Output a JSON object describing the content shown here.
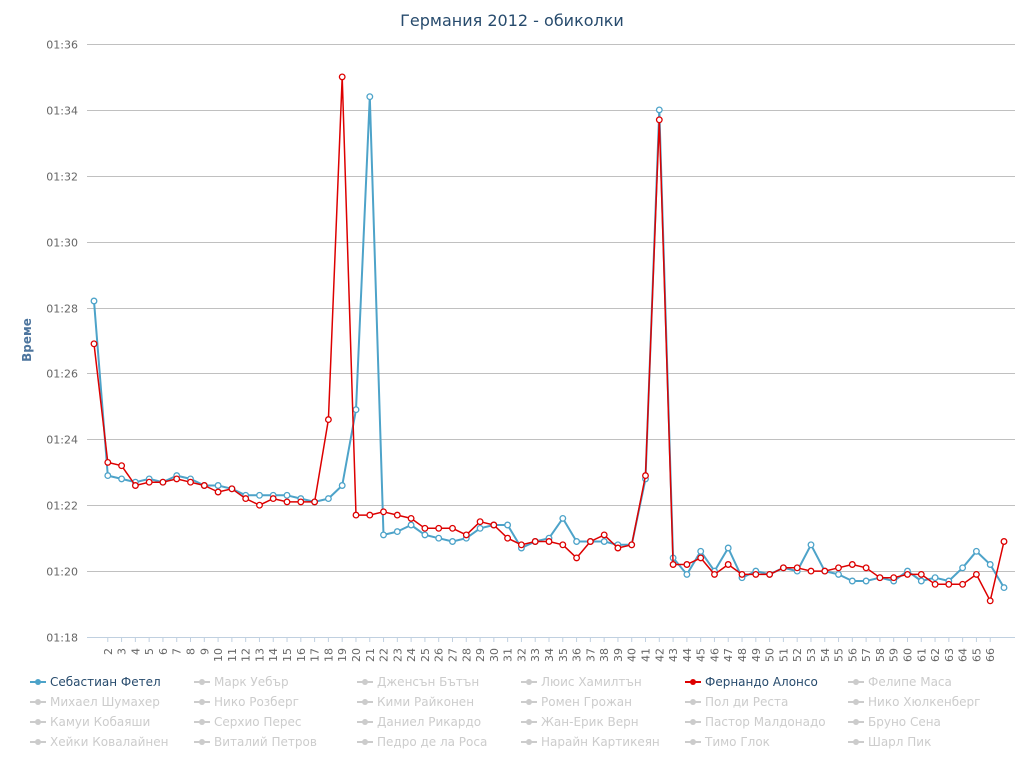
{
  "chart_data": {
    "type": "line",
    "title": "Германия 2012 - обиколки",
    "ylabel": "Време",
    "xlabel": "",
    "ylim": [
      78,
      96
    ],
    "ytick_values": [
      78,
      80,
      82,
      84,
      86,
      88,
      90,
      92,
      94,
      96
    ],
    "ytick_labels": [
      "01:18",
      "01:20",
      "01:22",
      "01:24",
      "01:26",
      "01:28",
      "01:30",
      "01:32",
      "01:34",
      "01:36"
    ],
    "x": [
      1,
      2,
      3,
      4,
      5,
      6,
      7,
      8,
      9,
      10,
      11,
      12,
      13,
      14,
      15,
      16,
      17,
      18,
      19,
      20,
      21,
      22,
      23,
      24,
      25,
      26,
      27,
      28,
      29,
      30,
      31,
      32,
      33,
      34,
      35,
      36,
      37,
      38,
      39,
      40,
      41,
      42,
      43,
      44,
      45,
      46,
      47,
      48,
      49,
      50,
      51,
      52,
      53,
      54,
      55,
      56,
      57,
      58,
      59,
      60,
      61,
      62,
      63,
      64,
      65,
      66,
      67
    ],
    "xtick_labels": [
      "2",
      "3",
      "4",
      "5",
      "6",
      "7",
      "8",
      "9",
      "10",
      "11",
      "12",
      "13",
      "14",
      "15",
      "16",
      "17",
      "18",
      "19",
      "20",
      "21",
      "22",
      "23",
      "24",
      "25",
      "26",
      "27",
      "28",
      "29",
      "30",
      "31",
      "32",
      "33",
      "34",
      "35",
      "36",
      "37",
      "38",
      "39",
      "40",
      "41",
      "42",
      "43",
      "44",
      "45",
      "46",
      "47",
      "48",
      "49",
      "50",
      "51",
      "52",
      "53",
      "54",
      "55",
      "56",
      "57",
      "58",
      "59",
      "60",
      "61",
      "62",
      "63",
      "64",
      "65",
      "66"
    ],
    "grid": true,
    "legend_position": "bottom",
    "series": [
      {
        "name": "Себастиан Фетел",
        "color": "#4da3c9",
        "values": [
          88.2,
          82.9,
          82.8,
          82.7,
          82.8,
          82.7,
          82.9,
          82.8,
          82.6,
          82.6,
          82.5,
          82.3,
          82.3,
          82.3,
          82.3,
          82.2,
          82.1,
          82.2,
          82.6,
          84.9,
          94.4,
          81.1,
          81.2,
          81.4,
          81.1,
          81.0,
          80.9,
          81.0,
          81.3,
          81.4,
          81.4,
          80.7,
          80.9,
          81.0,
          81.6,
          80.9,
          80.9,
          80.9,
          80.8,
          80.8,
          82.8,
          94.0,
          80.4,
          79.9,
          80.6,
          80.0,
          80.7,
          79.8,
          80.0,
          79.9,
          80.1,
          80.0,
          80.8,
          80.0,
          79.9,
          79.7,
          79.7,
          79.8,
          79.7,
          80.0,
          79.7,
          79.8,
          79.7,
          80.1,
          80.6,
          80.2,
          79.5
        ]
      },
      {
        "name": "Фернандо Алонсо",
        "color": "#dd0000",
        "values": [
          86.9,
          83.3,
          83.2,
          82.6,
          82.7,
          82.7,
          82.8,
          82.7,
          82.6,
          82.4,
          82.5,
          82.2,
          82.0,
          82.2,
          82.1,
          82.1,
          82.1,
          84.6,
          95.0,
          81.7,
          81.7,
          81.8,
          81.7,
          81.6,
          81.3,
          81.3,
          81.3,
          81.1,
          81.5,
          81.4,
          81.0,
          80.8,
          80.9,
          80.9,
          80.8,
          80.4,
          80.9,
          81.1,
          80.7,
          80.8,
          82.9,
          93.7,
          80.2,
          80.2,
          80.4,
          79.9,
          80.2,
          79.9,
          79.9,
          79.9,
          80.1,
          80.1,
          80.0,
          80.0,
          80.1,
          80.2,
          80.1,
          79.8,
          79.8,
          79.9,
          79.9,
          79.6,
          79.6,
          79.6,
          79.9,
          79.1,
          80.9
        ]
      }
    ],
    "legend": [
      {
        "name": "Себастиан Фетел",
        "active": true,
        "color": "#4da3c9"
      },
      {
        "name": "Марк Уебър",
        "active": false,
        "color": "#cccccc"
      },
      {
        "name": "Дженсън Бътън",
        "active": false,
        "color": "#cccccc"
      },
      {
        "name": "Люис Хамилтън",
        "active": false,
        "color": "#cccccc"
      },
      {
        "name": "Фернандо Алонсо",
        "active": true,
        "color": "#dd0000"
      },
      {
        "name": "Фелипе Маса",
        "active": false,
        "color": "#cccccc"
      },
      {
        "name": "Михаел Шумахер",
        "active": false,
        "color": "#cccccc"
      },
      {
        "name": "Нико Розберг",
        "active": false,
        "color": "#cccccc"
      },
      {
        "name": "Кими Райконен",
        "active": false,
        "color": "#cccccc"
      },
      {
        "name": "Ромен Грожан",
        "active": false,
        "color": "#cccccc"
      },
      {
        "name": "Пол ди Реста",
        "active": false,
        "color": "#cccccc"
      },
      {
        "name": "Нико Хюлкенберг",
        "active": false,
        "color": "#cccccc"
      },
      {
        "name": "Камуи Кобаяши",
        "active": false,
        "color": "#cccccc"
      },
      {
        "name": "Серхио Перес",
        "active": false,
        "color": "#cccccc"
      },
      {
        "name": "Даниел Рикардо",
        "active": false,
        "color": "#cccccc"
      },
      {
        "name": "Жан-Ерик Верн",
        "active": false,
        "color": "#cccccc"
      },
      {
        "name": "Пастор Малдонадо",
        "active": false,
        "color": "#cccccc"
      },
      {
        "name": "Бруно Сена",
        "active": false,
        "color": "#cccccc"
      },
      {
        "name": "Хейки Ковалайнен",
        "active": false,
        "color": "#cccccc"
      },
      {
        "name": "Виталий Петров",
        "active": false,
        "color": "#cccccc"
      },
      {
        "name": "Педро де ла Роса",
        "active": false,
        "color": "#cccccc"
      },
      {
        "name": "Нарайн Картикеян",
        "active": false,
        "color": "#cccccc"
      },
      {
        "name": "Тимо Глок",
        "active": false,
        "color": "#cccccc"
      },
      {
        "name": "Шарл Пик",
        "active": false,
        "color": "#cccccc"
      }
    ]
  }
}
